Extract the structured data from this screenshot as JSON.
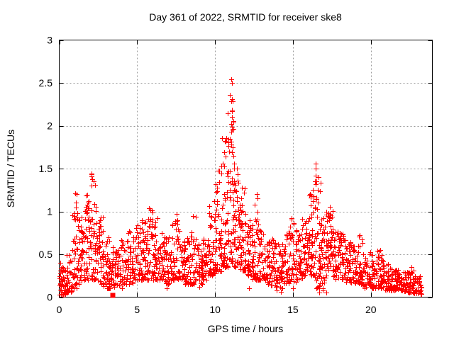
{
  "figure": {
    "background": "#ffffff",
    "border_color": "#000000",
    "grid_color": "#999999",
    "text_color": "#000000"
  },
  "chart_data": {
    "type": "scatter",
    "title": "Day 361 of 2022, SRMTID for receiver ske8",
    "xlabel": "GPS time / hours",
    "ylabel": "SRMTID / TECUs",
    "xlim": [
      0,
      23.95
    ],
    "ylim": [
      0,
      3
    ],
    "xticks": [
      0,
      5,
      10,
      15,
      20
    ],
    "yticks": [
      0,
      0.5,
      1,
      1.5,
      2,
      2.5,
      3
    ],
    "grid": true,
    "grid_style": "dotted",
    "legend": "none",
    "marker": {
      "shape": "plus",
      "size": 7,
      "color": "#ff0000"
    },
    "series_name": "SRMTID",
    "point_distribution": {
      "comment": "Dense +-marker scatter (~2100 pts over 0-23.25 h). Segments: [h_start, h_end, n_points, y_min, y_median, y_max] read from the plotted envelope.",
      "seed": 42,
      "segments": [
        [
          0.0,
          0.4,
          40,
          0.03,
          0.15,
          0.4
        ],
        [
          0.4,
          0.8,
          32,
          0.05,
          0.18,
          0.5
        ],
        [
          0.8,
          1.2,
          40,
          0.1,
          0.4,
          1.22
        ],
        [
          1.2,
          1.6,
          40,
          0.15,
          0.5,
          0.95
        ],
        [
          1.6,
          2.0,
          45,
          0.2,
          0.55,
          1.25
        ],
        [
          2.0,
          2.4,
          45,
          0.2,
          0.6,
          1.45
        ],
        [
          2.4,
          2.8,
          40,
          0.15,
          0.5,
          0.95
        ],
        [
          2.8,
          3.2,
          38,
          0.1,
          0.35,
          0.75
        ],
        [
          3.2,
          3.6,
          35,
          0.1,
          0.3,
          0.6
        ],
        [
          3.6,
          4.0,
          35,
          0.12,
          0.3,
          0.55
        ],
        [
          4.0,
          4.4,
          35,
          0.15,
          0.35,
          0.7
        ],
        [
          4.4,
          4.8,
          35,
          0.15,
          0.35,
          0.8
        ],
        [
          4.8,
          5.2,
          35,
          0.2,
          0.4,
          0.85
        ],
        [
          5.2,
          5.6,
          36,
          0.2,
          0.45,
          0.9
        ],
        [
          5.6,
          6.0,
          40,
          0.2,
          0.5,
          1.02
        ],
        [
          6.0,
          6.4,
          38,
          0.2,
          0.45,
          0.9
        ],
        [
          6.4,
          6.8,
          35,
          0.2,
          0.4,
          0.75
        ],
        [
          6.8,
          7.2,
          35,
          0.15,
          0.35,
          0.7
        ],
        [
          7.2,
          7.6,
          35,
          0.2,
          0.4,
          0.95
        ],
        [
          7.6,
          8.0,
          35,
          0.2,
          0.4,
          0.8
        ],
        [
          8.0,
          8.4,
          35,
          0.15,
          0.35,
          0.7
        ],
        [
          8.4,
          8.8,
          35,
          0.15,
          0.35,
          0.95
        ],
        [
          8.8,
          9.2,
          35,
          0.15,
          0.35,
          0.65
        ],
        [
          9.2,
          9.6,
          36,
          0.2,
          0.4,
          0.7
        ],
        [
          9.6,
          10.0,
          40,
          0.25,
          0.45,
          1.1
        ],
        [
          10.0,
          10.4,
          46,
          0.3,
          0.6,
          1.5
        ],
        [
          10.4,
          10.8,
          52,
          0.35,
          0.8,
          1.9
        ],
        [
          10.8,
          11.2,
          56,
          0.4,
          1.0,
          2.4
        ],
        [
          11.2,
          11.6,
          50,
          0.35,
          0.8,
          1.6
        ],
        [
          11.6,
          12.0,
          45,
          0.3,
          0.6,
          1.3
        ],
        [
          12.0,
          12.4,
          40,
          0.25,
          0.5,
          0.9
        ],
        [
          12.4,
          12.8,
          40,
          0.2,
          0.45,
          1.1
        ],
        [
          12.8,
          13.2,
          36,
          0.2,
          0.4,
          0.8
        ],
        [
          13.2,
          13.6,
          35,
          0.15,
          0.35,
          0.65
        ],
        [
          13.6,
          14.0,
          35,
          0.12,
          0.35,
          0.7
        ],
        [
          14.0,
          14.4,
          35,
          0.1,
          0.3,
          0.65
        ],
        [
          14.4,
          14.8,
          35,
          0.15,
          0.35,
          0.8
        ],
        [
          14.8,
          15.2,
          36,
          0.15,
          0.4,
          0.95
        ],
        [
          15.2,
          15.6,
          36,
          0.2,
          0.45,
          0.85
        ],
        [
          15.6,
          16.0,
          40,
          0.25,
          0.5,
          0.95
        ],
        [
          16.0,
          16.4,
          42,
          0.25,
          0.55,
          1.25
        ],
        [
          16.4,
          16.8,
          46,
          0.1,
          0.6,
          1.45
        ],
        [
          16.8,
          17.2,
          42,
          0.05,
          0.5,
          1.0
        ],
        [
          17.2,
          17.6,
          40,
          0.3,
          0.6,
          1.05
        ],
        [
          17.6,
          18.0,
          36,
          0.2,
          0.45,
          0.8
        ],
        [
          18.0,
          18.4,
          36,
          0.2,
          0.4,
          0.75
        ],
        [
          18.4,
          18.8,
          35,
          0.15,
          0.35,
          0.65
        ],
        [
          18.8,
          19.2,
          35,
          0.15,
          0.3,
          0.6
        ],
        [
          19.2,
          19.6,
          35,
          0.15,
          0.3,
          0.72
        ],
        [
          19.6,
          20.0,
          35,
          0.1,
          0.28,
          0.55
        ],
        [
          20.0,
          20.4,
          35,
          0.1,
          0.25,
          0.5
        ],
        [
          20.4,
          20.8,
          35,
          0.1,
          0.25,
          0.55
        ],
        [
          20.8,
          21.2,
          35,
          0.08,
          0.2,
          0.4
        ],
        [
          21.2,
          21.6,
          35,
          0.08,
          0.18,
          0.35
        ],
        [
          21.6,
          22.0,
          35,
          0.08,
          0.18,
          0.32
        ],
        [
          22.0,
          22.4,
          35,
          0.06,
          0.15,
          0.3
        ],
        [
          22.4,
          22.8,
          36,
          0.05,
          0.15,
          0.35
        ],
        [
          22.8,
          23.25,
          30,
          0.04,
          0.12,
          0.25
        ]
      ],
      "outliers": [
        [
          1.02,
          1.21
        ],
        [
          1.05,
          1.1
        ],
        [
          0.98,
          0.95
        ],
        [
          2.08,
          1.43
        ],
        [
          2.12,
          1.38
        ],
        [
          2.05,
          1.3
        ],
        [
          5.78,
          1.04
        ],
        [
          6.3,
          0.92
        ],
        [
          7.55,
          0.97
        ],
        [
          8.6,
          0.95
        ],
        [
          9.97,
          1.12
        ],
        [
          10.15,
          1.28
        ],
        [
          11.05,
          2.54
        ],
        [
          11.09,
          2.5
        ],
        [
          11.07,
          2.31
        ],
        [
          11.08,
          2.19
        ],
        [
          11.04,
          2.02
        ],
        [
          11.1,
          1.99
        ],
        [
          11.06,
          1.93
        ],
        [
          10.95,
          1.85
        ],
        [
          11.15,
          1.75
        ],
        [
          10.9,
          1.7
        ],
        [
          11.2,
          1.65
        ],
        [
          12.68,
          1.2
        ],
        [
          12.72,
          1.15
        ],
        [
          14.92,
          0.92
        ],
        [
          15.02,
          0.1
        ],
        [
          13.95,
          0.08
        ],
        [
          14.25,
          0.06
        ],
        [
          12.2,
          0.1
        ],
        [
          16.3,
          1.25
        ],
        [
          16.32,
          1.18
        ],
        [
          16.44,
          1.56
        ],
        [
          16.46,
          1.5
        ],
        [
          16.45,
          1.42
        ],
        [
          16.43,
          1.35
        ],
        [
          16.68,
          0.05
        ],
        [
          16.7,
          0.1
        ],
        [
          16.72,
          0.16
        ],
        [
          16.69,
          0.24
        ],
        [
          16.71,
          0.33
        ],
        [
          16.7,
          0.42
        ],
        [
          17.35,
          1.05
        ],
        [
          17.3,
          0.98
        ],
        [
          19.3,
          0.72
        ],
        [
          20.6,
          0.55
        ],
        [
          22.6,
          0.35
        ],
        [
          9.0,
          0.12
        ],
        [
          4.05,
          0.1
        ],
        [
          6.9,
          0.1
        ],
        [
          23.1,
          0.06
        ],
        [
          23.2,
          0.08
        ]
      ],
      "special_markers": [
        {
          "shape": "filled-square",
          "x": 3.45,
          "y": 0.02,
          "color": "#ff0000",
          "size": 7
        }
      ]
    }
  }
}
